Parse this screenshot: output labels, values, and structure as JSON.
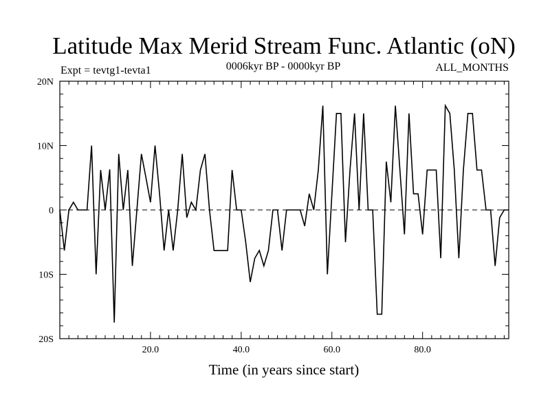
{
  "chart_data": {
    "type": "line",
    "title": "Latitude Max Merid Stream Func. Atlantic (oN)",
    "subtitle_left": "Expt = tevtg1-tevta1",
    "subtitle_center": "0006kyr BP - 0000kyr BP",
    "subtitle_right": "ALL_MONTHS",
    "xlabel": "Time (in years since start)",
    "ylabel": "",
    "xlim": [
      0,
      99
    ],
    "ylim": [
      -20,
      20
    ],
    "x_ticks": [
      {
        "value": 20,
        "label": "20.0"
      },
      {
        "value": 40,
        "label": "40.0"
      },
      {
        "value": 60,
        "label": "60.0"
      },
      {
        "value": 80,
        "label": "80.0"
      }
    ],
    "y_ticks": [
      {
        "value": 20,
        "label": "20N"
      },
      {
        "value": 10,
        "label": "10N"
      },
      {
        "value": 0,
        "label": "0"
      },
      {
        "value": -10,
        "label": "10S"
      },
      {
        "value": -20,
        "label": "20S"
      }
    ],
    "reference_line": 0,
    "x": [
      0,
      1,
      2,
      3,
      4,
      5,
      6,
      7,
      8,
      9,
      10,
      11,
      12,
      13,
      14,
      15,
      16,
      17,
      18,
      19,
      20,
      21,
      22,
      23,
      24,
      25,
      26,
      27,
      28,
      29,
      30,
      31,
      32,
      33,
      34,
      35,
      36,
      37,
      38,
      39,
      40,
      41,
      42,
      43,
      44,
      45,
      46,
      47,
      48,
      49,
      50,
      51,
      52,
      53,
      54,
      55,
      56,
      57,
      58,
      59,
      60,
      61,
      62,
      63,
      64,
      65,
      66,
      67,
      68,
      69,
      70,
      71,
      72,
      73,
      74,
      75,
      76,
      77,
      78,
      79,
      80,
      81,
      82,
      83,
      84,
      85,
      86,
      87,
      88,
      89,
      90,
      91,
      92,
      93,
      94,
      95,
      96,
      97,
      98,
      99
    ],
    "series": [
      {
        "name": "Latitude Max Merid Stream Func. Atlantic",
        "values": [
          0,
          -6.3,
          0,
          1.2,
          0,
          0,
          0,
          10,
          -10,
          6.2,
          0,
          6.3,
          -17.5,
          8.7,
          0,
          6.2,
          -8.7,
          0,
          8.7,
          5,
          1.2,
          10,
          2.5,
          -6.3,
          0,
          -6.3,
          0,
          8.7,
          -1.2,
          1.2,
          0,
          6.2,
          8.7,
          0,
          -6.3,
          -6.3,
          -6.3,
          -6.3,
          6.2,
          0,
          0,
          -5,
          -11.2,
          -7.5,
          -6.3,
          -8.7,
          -6.3,
          0,
          0,
          -6.3,
          0,
          0,
          0,
          0,
          -2.5,
          2.5,
          0,
          6.2,
          16.2,
          -10,
          2.5,
          15,
          15,
          -5,
          6.2,
          15,
          0,
          15,
          0,
          0,
          -16.2,
          -16.2,
          7.5,
          1.2,
          16.2,
          6.2,
          -3.8,
          15,
          2.5,
          2.5,
          -3.8,
          6.2,
          6.2,
          6.2,
          -7.5,
          16.2,
          15,
          6.2,
          -7.5,
          6.2,
          15,
          15,
          6.2,
          6.2,
          0,
          0,
          -8.7,
          -1.2,
          0,
          0
        ]
      }
    ]
  }
}
